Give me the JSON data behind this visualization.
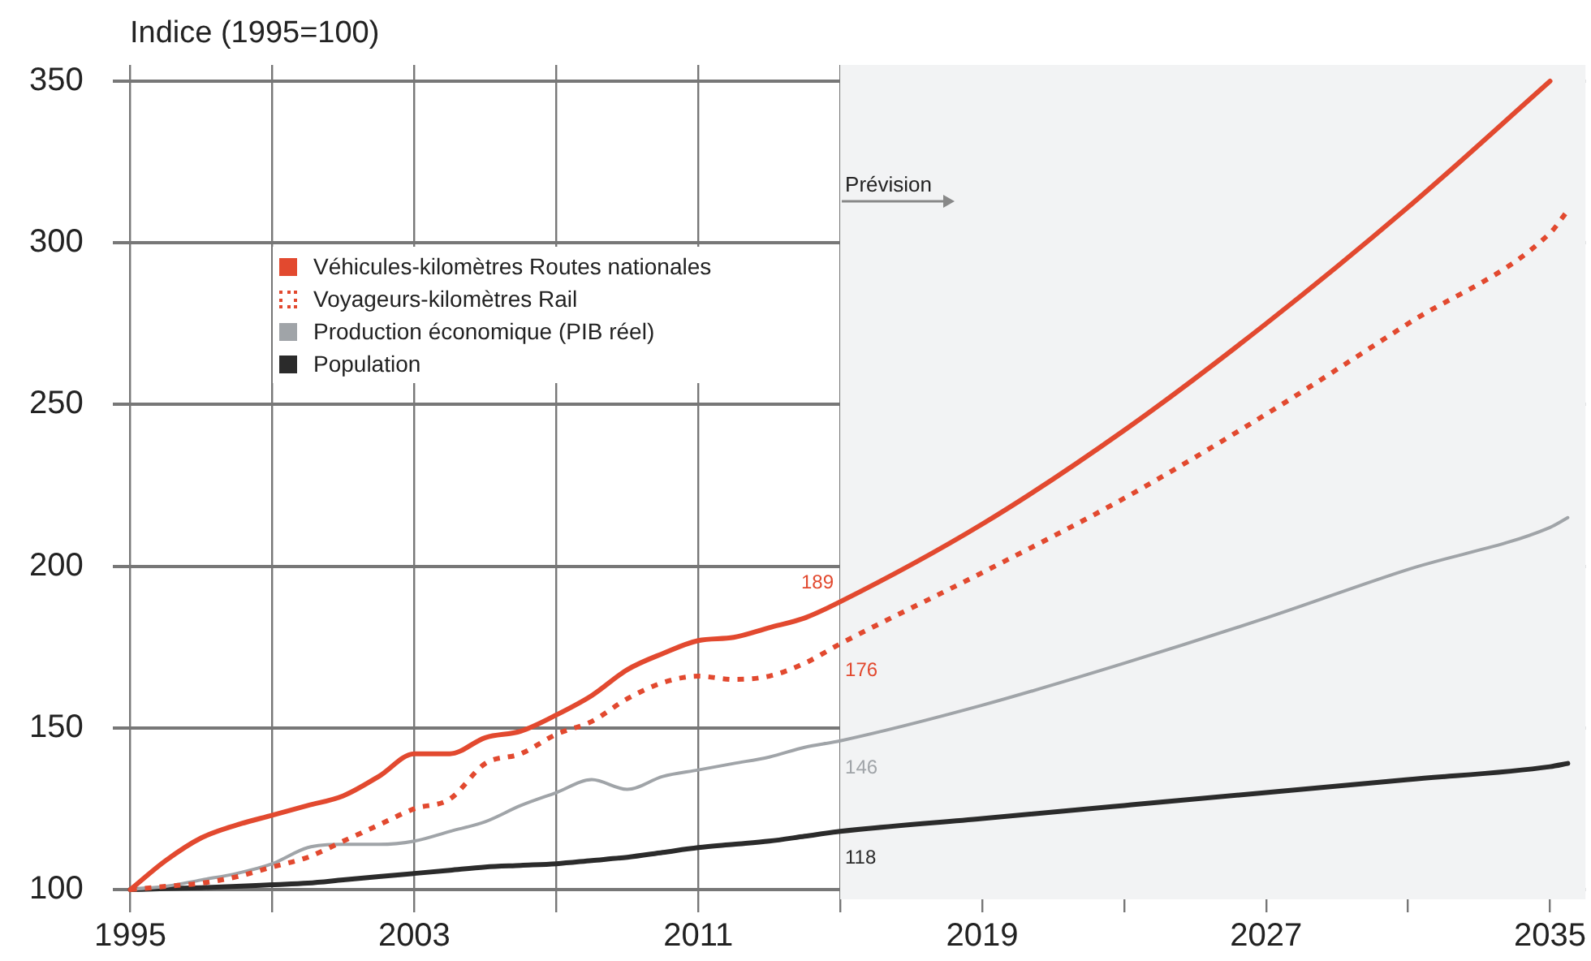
{
  "chart_data": {
    "type": "line",
    "ylabel": "Indice (1995=100)",
    "x": [
      1995,
      1996,
      1997,
      1998,
      1999,
      2000,
      2001,
      2002,
      2003,
      2004,
      2005,
      2006,
      2007,
      2008,
      2009,
      2010,
      2011,
      2012,
      2013,
      2014,
      2015,
      2019,
      2023,
      2027,
      2031,
      2035,
      2035.5
    ],
    "series": [
      {
        "name": "Véhicules-kilomètres Routes nationales",
        "color": "#e2492f",
        "line_style": "solid",
        "values": [
          100,
          109,
          116,
          120,
          123,
          126,
          129,
          135,
          142,
          142,
          147,
          149,
          154,
          160,
          168,
          173,
          177,
          178,
          181,
          184,
          189,
          213,
          242,
          275,
          311,
          350,
          null
        ],
        "value_labels": [
          null,
          null,
          null,
          null,
          null,
          null,
          null,
          null,
          null,
          null,
          null,
          null,
          null,
          null,
          null,
          null,
          null,
          null,
          null,
          null,
          "189",
          null,
          null,
          null,
          null,
          null,
          null
        ]
      },
      {
        "name": "Voyageurs-kilomètres Rail",
        "color": "#e2492f",
        "line_style": "dotted",
        "values": [
          100,
          101,
          102,
          104,
          107,
          110,
          115,
          120,
          125,
          128,
          139,
          142,
          148,
          152,
          159,
          164,
          166,
          165,
          166,
          170,
          176,
          198,
          221,
          247,
          275,
          303,
          310
        ],
        "value_labels": [
          null,
          null,
          null,
          null,
          null,
          null,
          null,
          null,
          null,
          null,
          null,
          null,
          null,
          null,
          null,
          null,
          null,
          null,
          null,
          null,
          "176",
          null,
          null,
          null,
          null,
          null,
          null
        ]
      },
      {
        "name": "Production économique (PIB réel)",
        "color": "#a0a4a8",
        "line_style": "solid",
        "values": [
          100,
          101,
          103,
          105,
          108,
          113,
          114,
          114,
          115,
          118,
          121,
          126,
          130,
          134,
          131,
          135,
          137,
          139,
          141,
          144,
          146,
          157,
          170,
          184,
          199,
          212,
          215
        ],
        "value_labels": [
          null,
          null,
          null,
          null,
          null,
          null,
          null,
          null,
          null,
          null,
          null,
          null,
          null,
          null,
          null,
          null,
          null,
          null,
          null,
          null,
          "146",
          null,
          null,
          null,
          null,
          null,
          null
        ]
      },
      {
        "name": "Population",
        "color": "#2b2b2b",
        "line_style": "solid",
        "values": [
          100,
          100.3,
          100.6,
          101,
          101.5,
          102,
          103,
          104,
          105,
          106,
          107,
          107.5,
          108,
          109,
          110,
          111.5,
          113,
          114,
          115,
          116.5,
          118,
          122,
          126,
          130,
          134,
          138,
          139
        ],
        "value_labels": [
          null,
          null,
          null,
          null,
          null,
          null,
          null,
          null,
          null,
          null,
          null,
          null,
          null,
          null,
          null,
          null,
          null,
          null,
          null,
          null,
          "118",
          null,
          null,
          null,
          null,
          null,
          null
        ]
      }
    ],
    "xlim": [
      1994.5,
      2036
    ],
    "xticks": [
      1995,
      {
        "value": 1999,
        "label": null
      },
      2003,
      {
        "value": 2007,
        "label": null
      },
      2011,
      {
        "value": 2015,
        "label": null
      },
      2019,
      {
        "value": 2023,
        "label": null
      },
      2027,
      {
        "value": 2031,
        "label": null
      },
      2035
    ],
    "ylim": [
      97,
      355
    ],
    "yticks": [
      100,
      150,
      200,
      250,
      300,
      350
    ],
    "bands": [
      {
        "axis": "x",
        "from": 2015,
        "to": 2036,
        "label": "Prévision",
        "color": "#f2f3f4"
      }
    ],
    "grid": true,
    "legend": "top left",
    "marker": "none"
  }
}
